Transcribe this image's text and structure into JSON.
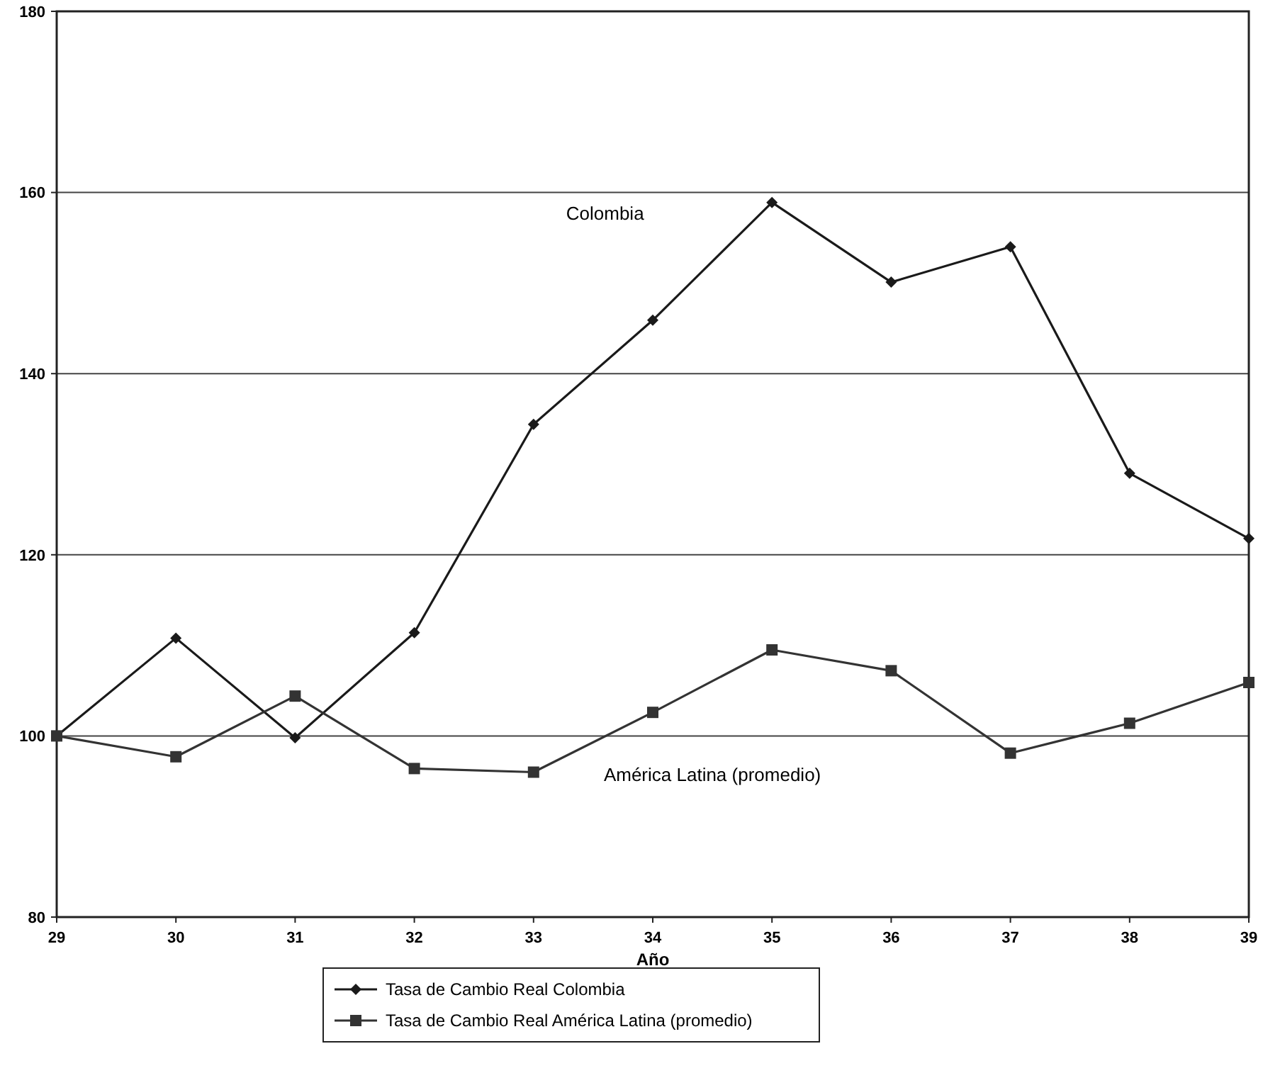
{
  "chart_data": {
    "type": "line",
    "xlabel": "Año",
    "x": [
      29,
      30,
      31,
      32,
      33,
      34,
      35,
      36,
      37,
      38,
      39
    ],
    "series": [
      {
        "name": "Tasa de Cambio Real Colombia",
        "color": "#1a1a1a",
        "marker": "diamond",
        "values": [
          100,
          110.8,
          99.8,
          111.4,
          134.4,
          145.9,
          158.9,
          150.1,
          154.0,
          129.0,
          121.8
        ]
      },
      {
        "name": "Tasa de Cambio Real América Latina (promedio)",
        "color": "#333333",
        "marker": "square",
        "values": [
          100,
          97.7,
          104.4,
          96.4,
          96.0,
          102.6,
          109.5,
          107.2,
          98.1,
          101.4,
          105.9
        ]
      }
    ],
    "xlim": [
      29,
      39
    ],
    "xticks": [
      29,
      30,
      31,
      32,
      33,
      34,
      35,
      36,
      37,
      38,
      39
    ],
    "ylim": [
      80,
      180
    ],
    "yticks": [
      80,
      100,
      120,
      140,
      160,
      180
    ],
    "grid": "y",
    "legend": "bottom",
    "annotations": [
      "Colombia",
      "América Latina (promedio)"
    ]
  }
}
